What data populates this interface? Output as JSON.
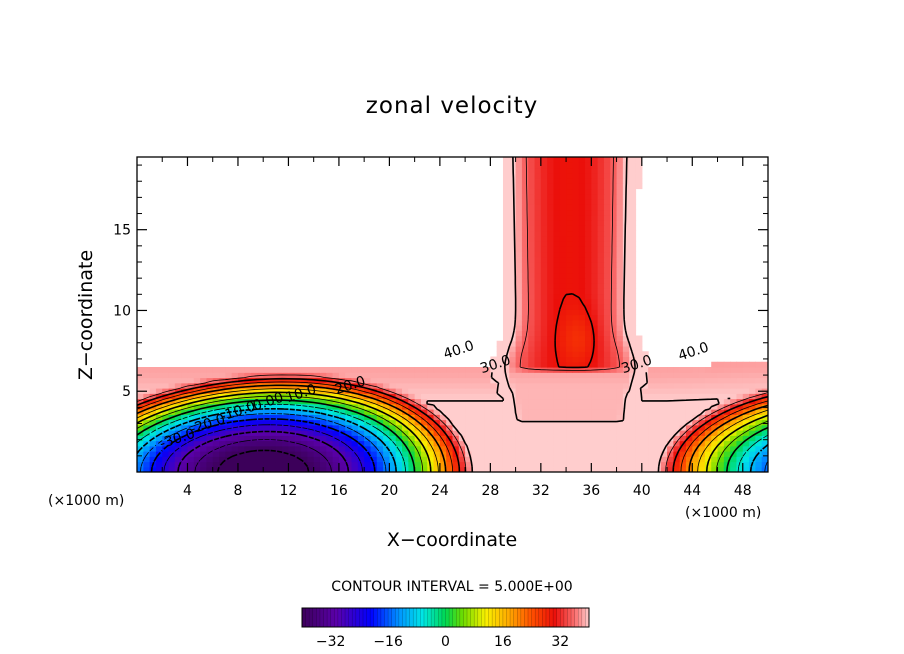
{
  "chart_data": {
    "type": "contour",
    "title": "zonal velocity",
    "xlabel": "X−coordinate",
    "ylabel": "Z−coordinate",
    "x_unit_left": "(×1000 m)",
    "x_unit_right": "(×1000 m)",
    "xlim": [
      0,
      50
    ],
    "ylim": [
      0,
      19.5
    ],
    "xticks": [
      4,
      8,
      12,
      16,
      20,
      24,
      28,
      32,
      36,
      40,
      44,
      48
    ],
    "yticks": [
      5,
      10,
      15
    ],
    "contour_interval_text": "CONTOUR INTERVAL = 5.000E+00",
    "negative_dashed": true,
    "contour_labels": [
      {
        "text": "40.0",
        "x": 25.6,
        "y": 7.3
      },
      {
        "text": "30.0",
        "x": 28.5,
        "y": 6.4
      },
      {
        "text": "30.0",
        "x": 39.7,
        "y": 6.4
      },
      {
        "text": "40.0",
        "x": 44.2,
        "y": 7.2
      },
      {
        "text": "20.0",
        "x": 17.0,
        "y": 5.1
      },
      {
        "text": "10.0",
        "x": 13.1,
        "y": 4.6
      },
      {
        "text": "0.00",
        "x": 10.5,
        "y": 4.1
      },
      {
        "text": "-10.0",
        "x": 8.1,
        "y": 3.5
      },
      {
        "text": "-20.0",
        "x": 5.7,
        "y": 2.7
      },
      {
        "text": "-30.0",
        "x": 3.3,
        "y": 1.8
      }
    ],
    "colorbar": {
      "min": -40,
      "max": 40,
      "ticks": [
        -32,
        -16,
        0,
        16,
        32
      ],
      "tick_labels": [
        "−32",
        "−16",
        "0",
        "16",
        "32"
      ]
    },
    "colors": {
      "undefined_region": "#ffffff",
      "axis": "#000000"
    }
  }
}
